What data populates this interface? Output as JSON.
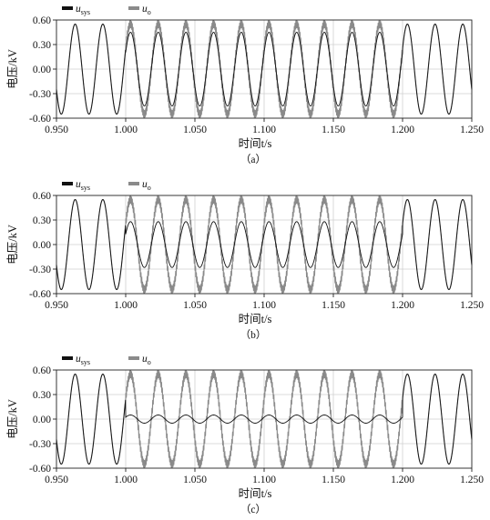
{
  "chart_data": [
    {
      "type": "line",
      "caption": "（a）",
      "xlabel": "时间t/s",
      "ylabel": "电压/kV",
      "xlim": [
        0.95,
        1.25
      ],
      "ylim": [
        -0.6,
        0.6
      ],
      "xticks": [
        "0.950",
        "1.000",
        "1.050",
        "1.100",
        "1.150",
        "1.200",
        "1.250"
      ],
      "yticks": [
        "0.60",
        "0.30",
        "0.00",
        "-0.30",
        "-0.60"
      ],
      "grid": true,
      "legend_position": "top-left",
      "frequency_hz": 50,
      "event_interval_s": [
        1.0,
        1.2
      ],
      "series": [
        {
          "name": "u",
          "subscript": "sys",
          "color": "#111111",
          "amplitude_normal_kV": 0.55,
          "amplitude_event_kV": 0.45
        },
        {
          "name": "u",
          "subscript": "o",
          "color": "#8a8a8a",
          "amplitude_normal_kV": 0.55,
          "amplitude_event_kV": 0.55,
          "ripple_event_kV": 0.05
        }
      ]
    },
    {
      "type": "line",
      "caption": "（b）",
      "xlabel": "时间t/s",
      "ylabel": "电压/kV",
      "xlim": [
        0.95,
        1.25
      ],
      "ylim": [
        -0.6,
        0.6
      ],
      "xticks": [
        "0.950",
        "1.000",
        "1.050",
        "1.100",
        "1.150",
        "1.200",
        "1.250"
      ],
      "yticks": [
        "0.60",
        "0.30",
        "0.00",
        "-0.30",
        "-0.60"
      ],
      "grid": true,
      "legend_position": "top-left",
      "frequency_hz": 50,
      "event_interval_s": [
        1.0,
        1.2
      ],
      "series": [
        {
          "name": "u",
          "subscript": "sys",
          "color": "#111111",
          "amplitude_normal_kV": 0.55,
          "amplitude_event_kV": 0.28
        },
        {
          "name": "u",
          "subscript": "o",
          "color": "#8a8a8a",
          "amplitude_normal_kV": 0.55,
          "amplitude_event_kV": 0.55,
          "ripple_event_kV": 0.05
        }
      ]
    },
    {
      "type": "line",
      "caption": "（c）",
      "xlabel": "时间t/s",
      "ylabel": "电压/kV",
      "xlim": [
        0.95,
        1.25
      ],
      "ylim": [
        -0.6,
        0.6
      ],
      "xticks": [
        "0.950",
        "1.000",
        "1.050",
        "1.100",
        "1.150",
        "1.200",
        "1.250"
      ],
      "yticks": [
        "0.60",
        "0.30",
        "0.00",
        "-0.30",
        "-0.60"
      ],
      "grid": true,
      "legend_position": "top-left",
      "frequency_hz": 50,
      "event_interval_s": [
        1.0,
        1.2
      ],
      "series": [
        {
          "name": "u",
          "subscript": "sys",
          "color": "#111111",
          "amplitude_normal_kV": 0.55,
          "amplitude_event_kV": 0.05
        },
        {
          "name": "u",
          "subscript": "o",
          "color": "#8a8a8a",
          "amplitude_normal_kV": 0.55,
          "amplitude_event_kV": 0.55,
          "ripple_event_kV": 0.05
        }
      ]
    }
  ]
}
